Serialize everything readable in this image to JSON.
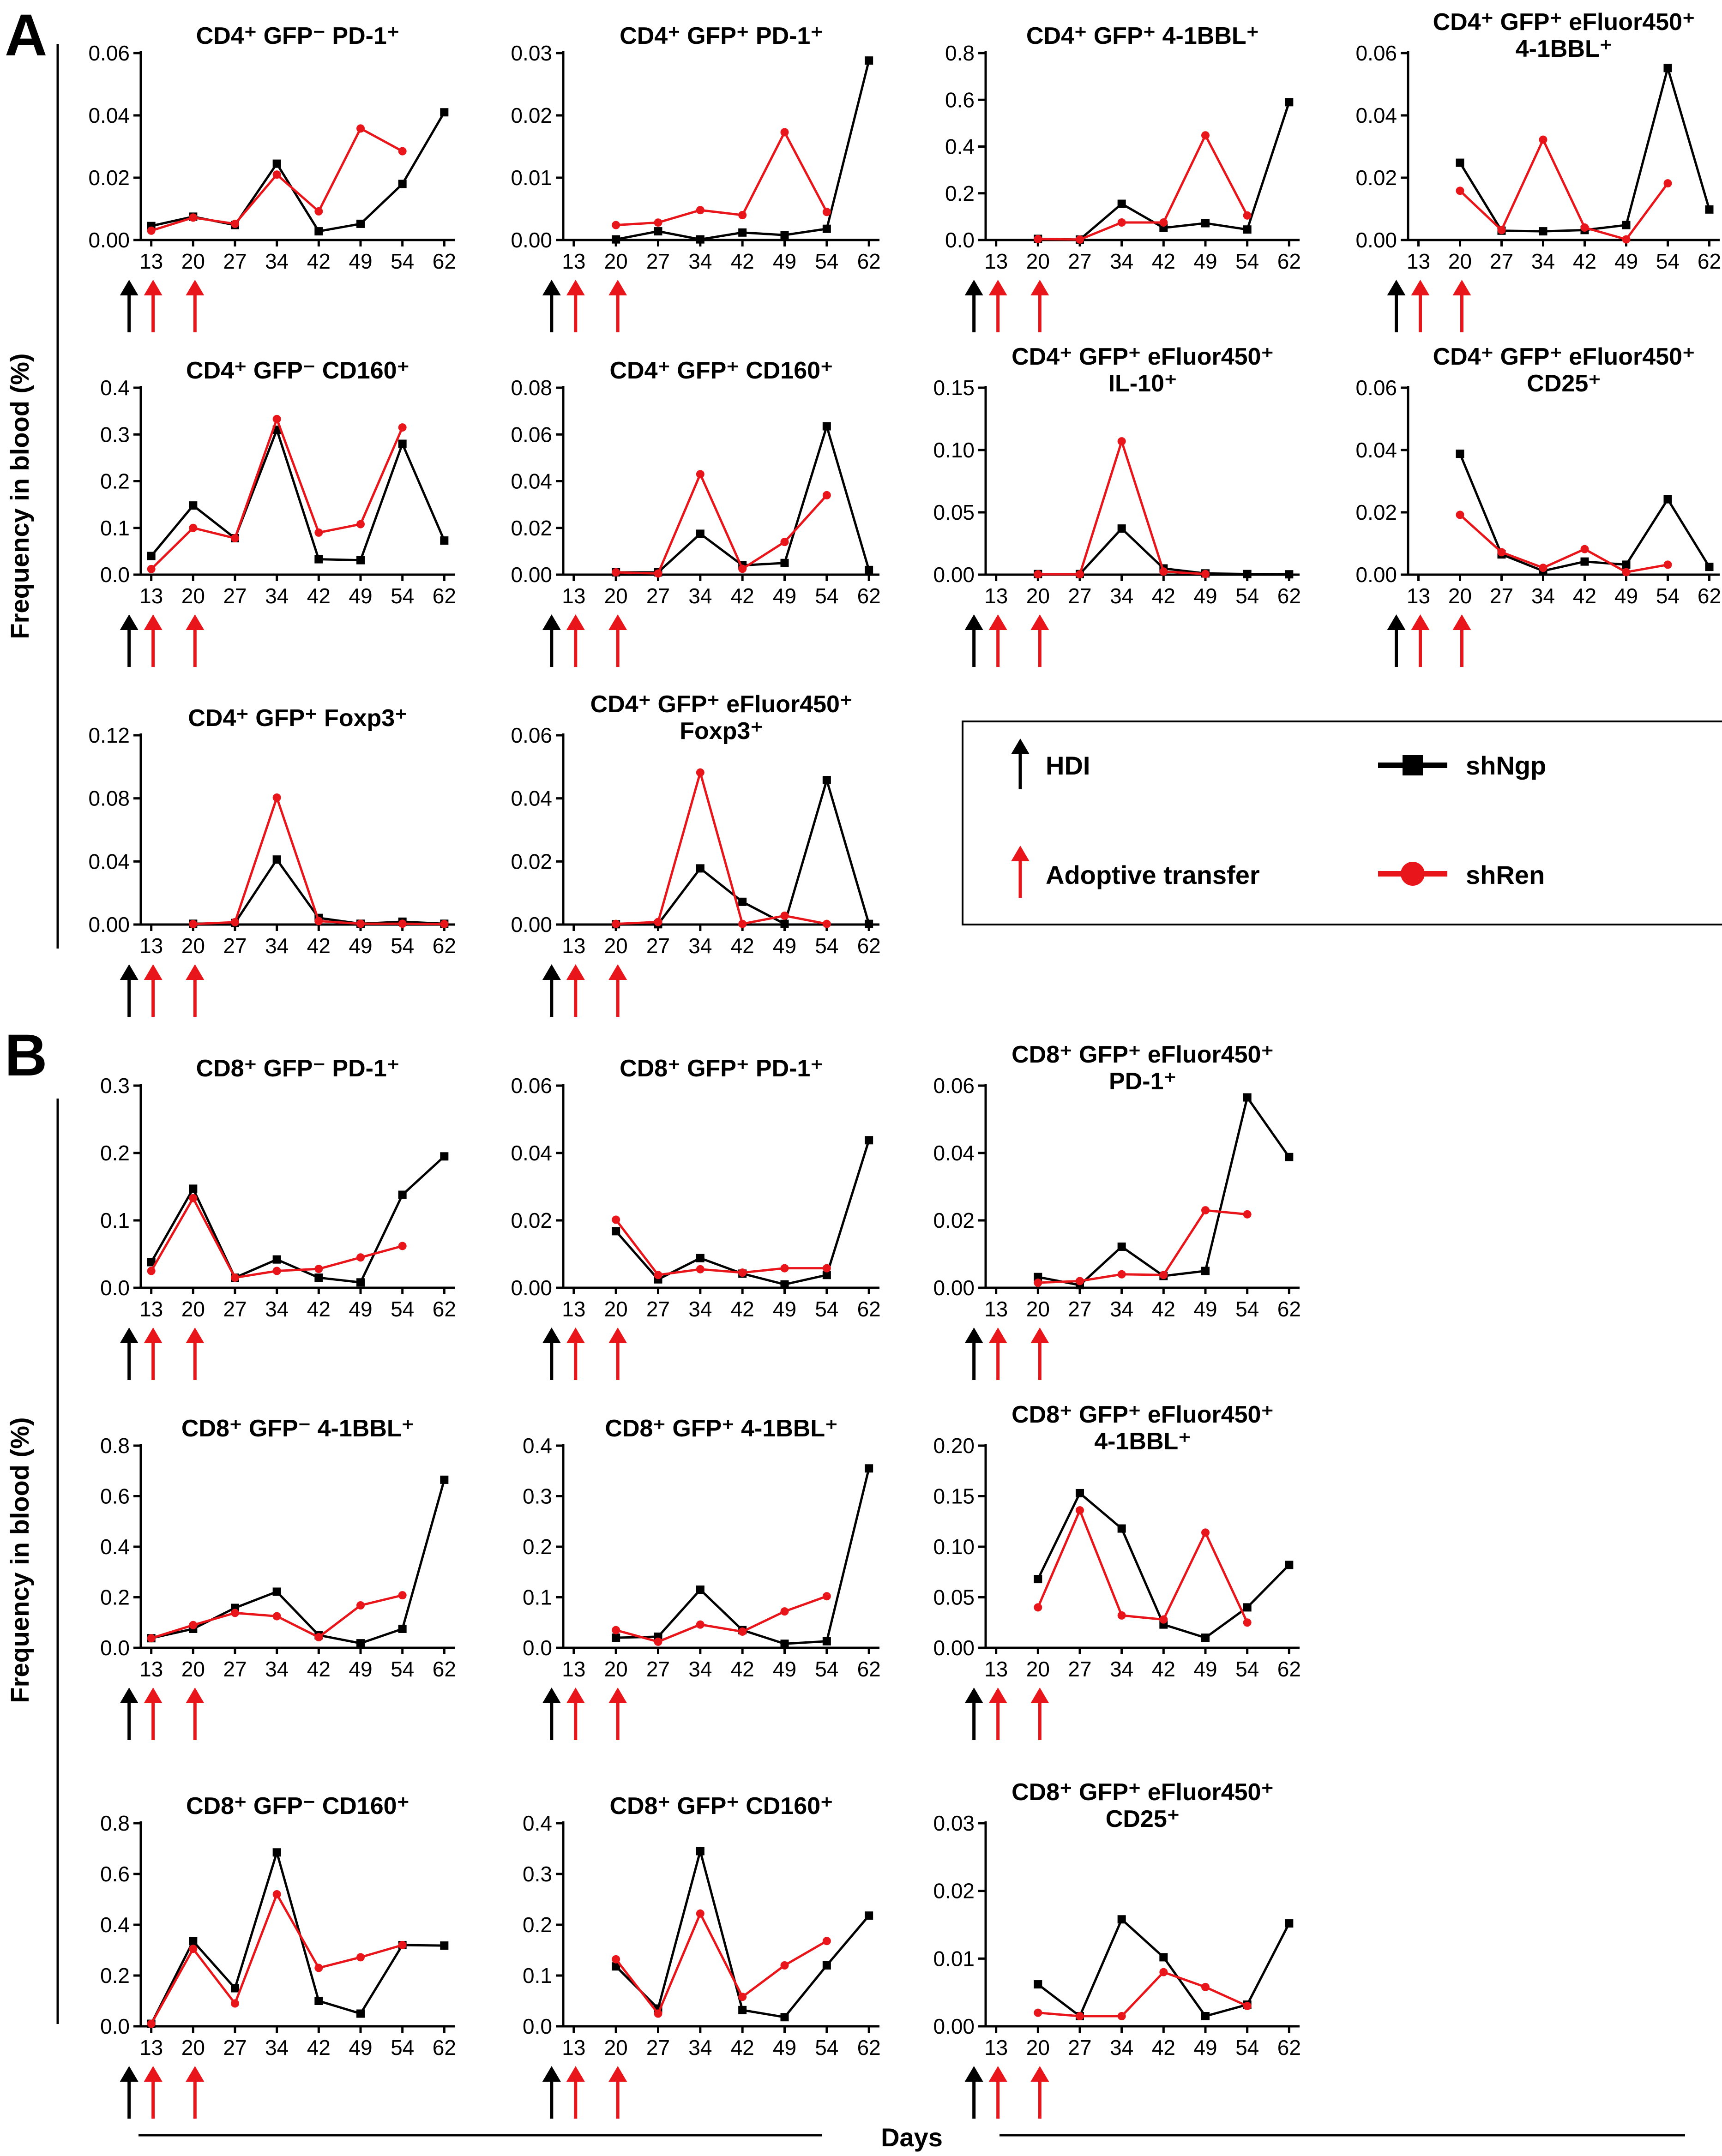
{
  "colors": {
    "shNgp": "#000000",
    "shRen": "#e8161b",
    "hdi_arrow": "#000000",
    "transfer_arrow": "#e8161b"
  },
  "panels": [
    {
      "label": "A",
      "ylabel": "Frequency in blood (%)"
    },
    {
      "label": "B",
      "ylabel": "Frequency in blood (%)"
    }
  ],
  "xlabel": "Days",
  "legend": {
    "items": [
      {
        "marker": "arrow",
        "color": "#000000",
        "label": "HDI"
      },
      {
        "marker": "line-square",
        "color": "#000000",
        "label": "shNgp"
      },
      {
        "marker": "arrow",
        "color": "#e8161b",
        "label": "Adoptive transfer"
      },
      {
        "marker": "line-circle",
        "color": "#e8161b",
        "label": "shRen"
      }
    ]
  },
  "chart_data": [
    {
      "type": "line",
      "title": [
        "CD4⁺ GFP⁻ PD-1⁺"
      ],
      "categories": [
        13,
        20,
        27,
        34,
        42,
        49,
        54,
        62
      ],
      "ylim": [
        0,
        0.06
      ],
      "yticks": [
        "0.00",
        "0.02",
        "0.04",
        "0.06"
      ],
      "series": [
        {
          "name": "shNgp",
          "values": [
            0.0045,
            0.0075,
            0.0048,
            0.0245,
            0.0028,
            0.0052,
            0.018,
            0.041
          ]
        },
        {
          "name": "shRen",
          "values": [
            0.003,
            0.0072,
            0.0052,
            0.021,
            0.0092,
            0.0358,
            0.0285,
            null
          ]
        }
      ]
    },
    {
      "type": "line",
      "title": [
        "CD4⁺ GFP⁺ PD-1⁺"
      ],
      "categories": [
        13,
        20,
        27,
        34,
        42,
        49,
        54,
        62
      ],
      "ylim": [
        0,
        0.03
      ],
      "yticks": [
        "0.00",
        "0.01",
        "0.02",
        "0.03"
      ],
      "series": [
        {
          "name": "shNgp",
          "values": [
            null,
            0.0001,
            0.0014,
            0.0001,
            0.0012,
            0.0008,
            0.0018,
            0.0288
          ]
        },
        {
          "name": "shRen",
          "values": [
            null,
            0.0024,
            0.0028,
            0.0048,
            0.004,
            0.0173,
            0.0045,
            null
          ]
        }
      ]
    },
    {
      "type": "line",
      "title": [
        "CD4⁺ GFP⁺ 4-1BBL⁺"
      ],
      "categories": [
        13,
        20,
        27,
        34,
        42,
        49,
        54,
        62
      ],
      "ylim": [
        0,
        0.8
      ],
      "yticks": [
        "0.0",
        "0.2",
        "0.4",
        "0.6",
        "0.8"
      ],
      "series": [
        {
          "name": "shNgp",
          "values": [
            null,
            0.005,
            0.002,
            0.155,
            0.052,
            0.072,
            0.045,
            0.59
          ]
        },
        {
          "name": "shRen",
          "values": [
            null,
            0.004,
            0.002,
            0.075,
            0.075,
            0.448,
            0.105,
            null
          ]
        }
      ]
    },
    {
      "type": "line",
      "title": [
        "CD4⁺ GFP⁺ eFluor450⁺",
        "4-1BBL⁺"
      ],
      "categories": [
        13,
        20,
        27,
        34,
        42,
        49,
        54,
        62
      ],
      "ylim": [
        0,
        0.06
      ],
      "yticks": [
        "0.00",
        "0.02",
        "0.04",
        "0.06"
      ],
      "series": [
        {
          "name": "shNgp",
          "values": [
            null,
            0.0248,
            0.003,
            0.0028,
            0.0032,
            0.0048,
            0.0552,
            0.0098
          ]
        },
        {
          "name": "shRen",
          "values": [
            null,
            0.0158,
            0.0032,
            0.0322,
            0.004,
            0.0002,
            0.0182,
            null
          ]
        }
      ]
    },
    {
      "type": "line",
      "title": [
        "CD4⁺ GFP⁻ CD160⁺"
      ],
      "categories": [
        13,
        20,
        27,
        34,
        42,
        49,
        54,
        62
      ],
      "ylim": [
        0,
        0.4
      ],
      "yticks": [
        "0.0",
        "0.1",
        "0.2",
        "0.3",
        "0.4"
      ],
      "series": [
        {
          "name": "shNgp",
          "values": [
            0.04,
            0.148,
            0.078,
            0.31,
            0.033,
            0.031,
            0.28,
            0.073
          ]
        },
        {
          "name": "shRen",
          "values": [
            0.012,
            0.1,
            0.078,
            0.333,
            0.09,
            0.108,
            0.315,
            null
          ]
        }
      ]
    },
    {
      "type": "line",
      "title": [
        "CD4⁺ GFP⁺ CD160⁺"
      ],
      "categories": [
        13,
        20,
        27,
        34,
        42,
        49,
        54,
        62
      ],
      "ylim": [
        0,
        0.08
      ],
      "yticks": [
        "0.00",
        "0.02",
        "0.04",
        "0.06",
        "0.08"
      ],
      "series": [
        {
          "name": "shNgp",
          "values": [
            null,
            0.001,
            0.001,
            0.0175,
            0.004,
            0.005,
            0.0635,
            0.002
          ]
        },
        {
          "name": "shRen",
          "values": [
            null,
            0.001,
            0.0005,
            0.043,
            0.0025,
            0.014,
            0.034,
            null
          ]
        }
      ]
    },
    {
      "type": "line",
      "title": [
        "CD4⁺ GFP⁺ eFluor450⁺",
        "IL-10⁺"
      ],
      "categories": [
        13,
        20,
        27,
        34,
        42,
        49,
        54,
        62
      ],
      "ylim": [
        0,
        0.15
      ],
      "yticks": [
        "0.00",
        "0.05",
        "0.10",
        "0.15"
      ],
      "series": [
        {
          "name": "shNgp",
          "values": [
            null,
            0.0005,
            0.0005,
            0.037,
            0.005,
            0.001,
            0.0005,
            0.0003
          ]
        },
        {
          "name": "shRen",
          "values": [
            null,
            0.0003,
            0.0003,
            0.107,
            0.0025,
            0.0005,
            null,
            null
          ]
        }
      ]
    },
    {
      "type": "line",
      "title": [
        "CD4⁺ GFP⁺ eFluor450⁺",
        "CD25⁺"
      ],
      "categories": [
        13,
        20,
        27,
        34,
        42,
        49,
        54,
        62
      ],
      "ylim": [
        0,
        0.06
      ],
      "yticks": [
        "0.00",
        "0.02",
        "0.04",
        "0.06"
      ],
      "series": [
        {
          "name": "shNgp",
          "values": [
            null,
            0.0388,
            0.0065,
            0.0012,
            0.0042,
            0.0032,
            0.0242,
            0.0025
          ]
        },
        {
          "name": "shRen",
          "values": [
            null,
            0.0192,
            0.0072,
            0.0022,
            0.0082,
            0.0008,
            0.0032,
            null
          ]
        }
      ]
    },
    {
      "type": "line",
      "title": [
        "CD4⁺ GFP⁺ Foxp3⁺"
      ],
      "categories": [
        13,
        20,
        27,
        34,
        42,
        49,
        54,
        62
      ],
      "ylim": [
        0,
        0.12
      ],
      "yticks": [
        "0.00",
        "0.04",
        "0.08",
        "0.12"
      ],
      "series": [
        {
          "name": "shNgp",
          "values": [
            null,
            0.0005,
            0.001,
            0.0412,
            0.0042,
            0.0005,
            0.0018,
            0.0005
          ]
        },
        {
          "name": "shRen",
          "values": [
            null,
            0.0003,
            0.0015,
            0.0805,
            0.0022,
            0.0005,
            0.0005,
            0.0003
          ]
        }
      ]
    },
    {
      "type": "line",
      "title": [
        "CD4⁺ GFP⁺ eFluor450⁺",
        "Foxp3⁺"
      ],
      "categories": [
        13,
        20,
        27,
        34,
        42,
        49,
        54,
        62
      ],
      "ylim": [
        0,
        0.06
      ],
      "yticks": [
        "0.00",
        "0.02",
        "0.04",
        "0.06"
      ],
      "series": [
        {
          "name": "shNgp",
          "values": [
            null,
            0.0001,
            0.0001,
            0.0178,
            0.0072,
            0.0002,
            0.0458,
            0.0002
          ]
        },
        {
          "name": "shRen",
          "values": [
            null,
            0.0002,
            0.0008,
            0.0482,
            0.0002,
            0.0028,
            0.0002,
            null
          ]
        }
      ]
    },
    {
      "type": "line",
      "title": [
        "CD8⁺ GFP⁻ PD-1⁺"
      ],
      "categories": [
        13,
        20,
        27,
        34,
        42,
        49,
        54,
        62
      ],
      "ylim": [
        0,
        0.3
      ],
      "yticks": [
        "0.0",
        "0.1",
        "0.2",
        "0.3"
      ],
      "series": [
        {
          "name": "shNgp",
          "values": [
            0.038,
            0.147,
            0.015,
            0.042,
            0.015,
            0.008,
            0.138,
            0.195
          ]
        },
        {
          "name": "shRen",
          "values": [
            0.025,
            0.133,
            0.015,
            0.025,
            0.028,
            0.045,
            0.062,
            null
          ]
        }
      ]
    },
    {
      "type": "line",
      "title": [
        "CD8⁺ GFP⁺ PD-1⁺"
      ],
      "categories": [
        13,
        20,
        27,
        34,
        42,
        49,
        54,
        62
      ],
      "ylim": [
        0,
        0.06
      ],
      "yticks": [
        "0.00",
        "0.02",
        "0.04",
        "0.06"
      ],
      "series": [
        {
          "name": "shNgp",
          "values": [
            null,
            0.0168,
            0.0025,
            0.0088,
            0.0042,
            0.001,
            0.0038,
            0.0438
          ]
        },
        {
          "name": "shRen",
          "values": [
            null,
            0.0202,
            0.0038,
            0.0055,
            0.0045,
            0.0058,
            0.0058,
            null
          ]
        }
      ]
    },
    {
      "type": "line",
      "title": [
        "CD8⁺ GFP⁺ eFluor450⁺",
        "PD-1⁺"
      ],
      "categories": [
        13,
        20,
        27,
        34,
        42,
        49,
        54,
        62
      ],
      "ylim": [
        0,
        0.06
      ],
      "yticks": [
        "0.00",
        "0.02",
        "0.04",
        "0.06"
      ],
      "series": [
        {
          "name": "shNgp",
          "values": [
            null,
            0.0032,
            0.0008,
            0.0122,
            0.0035,
            0.005,
            0.0565,
            0.0388
          ]
        },
        {
          "name": "shRen",
          "values": [
            null,
            0.0015,
            0.002,
            0.004,
            0.0038,
            0.023,
            0.0218,
            null
          ]
        }
      ]
    },
    {
      "type": "line",
      "title": [
        "CD8⁺ GFP⁻ 4-1BBL⁺"
      ],
      "categories": [
        13,
        20,
        27,
        34,
        42,
        49,
        54,
        62
      ],
      "ylim": [
        0,
        0.8
      ],
      "yticks": [
        "0.0",
        "0.2",
        "0.4",
        "0.6",
        "0.8"
      ],
      "series": [
        {
          "name": "shNgp",
          "values": [
            0.038,
            0.075,
            0.158,
            0.222,
            0.05,
            0.018,
            0.075,
            0.665
          ]
        },
        {
          "name": "shRen",
          "values": [
            0.038,
            0.09,
            0.138,
            0.125,
            0.042,
            0.168,
            0.208,
            null
          ]
        }
      ]
    },
    {
      "type": "line",
      "title": [
        "CD8⁺ GFP⁺ 4-1BBL⁺"
      ],
      "categories": [
        13,
        20,
        27,
        34,
        42,
        49,
        54,
        62
      ],
      "ylim": [
        0,
        0.4
      ],
      "yticks": [
        "0.0",
        "0.1",
        "0.2",
        "0.3",
        "0.4"
      ],
      "series": [
        {
          "name": "shNgp",
          "values": [
            null,
            0.02,
            0.022,
            0.115,
            0.035,
            0.008,
            0.013,
            0.355
          ]
        },
        {
          "name": "shRen",
          "values": [
            null,
            0.035,
            0.012,
            0.046,
            0.032,
            0.072,
            0.102,
            null
          ]
        }
      ]
    },
    {
      "type": "line",
      "title": [
        "CD8⁺ GFP⁺ eFluor450⁺",
        "4-1BBL⁺"
      ],
      "categories": [
        13,
        20,
        27,
        34,
        42,
        49,
        54,
        62
      ],
      "ylim": [
        0,
        0.2
      ],
      "yticks": [
        "0.00",
        "0.05",
        "0.10",
        "0.15",
        "0.20"
      ],
      "series": [
        {
          "name": "shNgp",
          "values": [
            null,
            0.068,
            0.153,
            0.118,
            0.023,
            0.01,
            0.04,
            0.082
          ]
        },
        {
          "name": "shRen",
          "values": [
            null,
            0.04,
            0.136,
            0.032,
            0.028,
            0.114,
            0.025,
            null
          ]
        }
      ]
    },
    {
      "type": "line",
      "title": [
        "CD8⁺ GFP⁻ CD160⁺"
      ],
      "categories": [
        13,
        20,
        27,
        34,
        42,
        49,
        54,
        62
      ],
      "ylim": [
        0,
        0.8
      ],
      "yticks": [
        "0.0",
        "0.2",
        "0.4",
        "0.6",
        "0.8"
      ],
      "series": [
        {
          "name": "shNgp",
          "values": [
            0.01,
            0.335,
            0.15,
            0.685,
            0.1,
            0.05,
            0.32,
            0.318
          ]
        },
        {
          "name": "shRen",
          "values": [
            0.01,
            0.305,
            0.09,
            0.52,
            0.23,
            0.272,
            0.32,
            null
          ]
        }
      ]
    },
    {
      "type": "line",
      "title": [
        "CD8⁺ GFP⁺ CD160⁺"
      ],
      "categories": [
        13,
        20,
        27,
        34,
        42,
        49,
        54,
        62
      ],
      "ylim": [
        0,
        0.4
      ],
      "yticks": [
        "0.0",
        "0.1",
        "0.2",
        "0.3",
        "0.4"
      ],
      "series": [
        {
          "name": "shNgp",
          "values": [
            null,
            0.118,
            0.035,
            0.345,
            0.032,
            0.018,
            0.12,
            0.218
          ]
        },
        {
          "name": "shRen",
          "values": [
            null,
            0.132,
            0.025,
            0.222,
            0.058,
            0.12,
            0.168,
            null
          ]
        }
      ]
    },
    {
      "type": "line",
      "title": [
        "CD8⁺ GFP⁺ eFluor450⁺",
        "CD25⁺"
      ],
      "categories": [
        13,
        20,
        27,
        34,
        42,
        49,
        54,
        62
      ],
      "ylim": [
        0,
        0.03
      ],
      "yticks": [
        "0.00",
        "0.01",
        "0.02",
        "0.03"
      ],
      "series": [
        {
          "name": "shNgp",
          "values": [
            null,
            0.0062,
            0.0015,
            0.0158,
            0.0102,
            0.0015,
            0.0032,
            0.0152
          ]
        },
        {
          "name": "shRen",
          "values": [
            null,
            0.002,
            0.0015,
            0.0015,
            0.008,
            0.0058,
            0.003,
            null
          ]
        }
      ]
    }
  ]
}
